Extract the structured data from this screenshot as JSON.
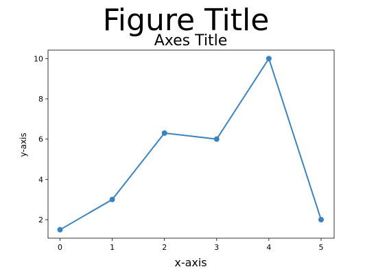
{
  "chart_data": {
    "type": "line",
    "figure_title": "Figure Title",
    "title": "Axes Title",
    "xlabel": "x-axis",
    "ylabel": "y-axis",
    "x": [
      0,
      1,
      2,
      3,
      4,
      5
    ],
    "y": [
      1.5,
      3,
      6.3,
      6,
      10,
      2
    ],
    "xticks": [
      0,
      1,
      2,
      3,
      4,
      5
    ],
    "yticks": [
      2,
      4,
      6,
      8,
      10
    ],
    "xlim": [
      -0.23,
      5.25
    ],
    "ylim": [
      1.08,
      10.42
    ],
    "grid": false,
    "markers": true,
    "line_color": "#3a83c1"
  }
}
